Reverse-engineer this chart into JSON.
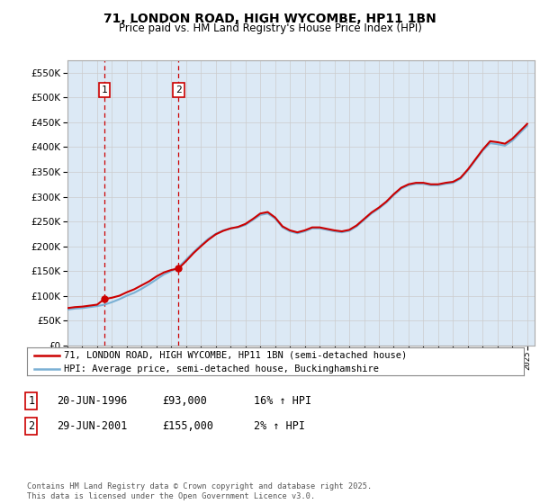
{
  "title": "71, LONDON ROAD, HIGH WYCOMBE, HP11 1BN",
  "subtitle": "Price paid vs. HM Land Registry's House Price Index (HPI)",
  "legend_line1": "71, LONDON ROAD, HIGH WYCOMBE, HP11 1BN (semi-detached house)",
  "legend_line2": "HPI: Average price, semi-detached house, Buckinghamshire",
  "annotation1_label": "1",
  "annotation1_date": "20-JUN-1996",
  "annotation1_price": "£93,000",
  "annotation1_hpi": "16% ↑ HPI",
  "annotation1_year": 1996.47,
  "annotation1_value": 93000,
  "annotation2_label": "2",
  "annotation2_date": "29-JUN-2001",
  "annotation2_price": "£155,000",
  "annotation2_hpi": "2% ↑ HPI",
  "annotation2_year": 2001.49,
  "annotation2_value": 155000,
  "footer": "Contains HM Land Registry data © Crown copyright and database right 2025.\nThis data is licensed under the Open Government Licence v3.0.",
  "ylim": [
    0,
    575000
  ],
  "yticks": [
    0,
    50000,
    100000,
    150000,
    200000,
    250000,
    300000,
    350000,
    400000,
    450000,
    500000,
    550000
  ],
  "xlim_start": 1994,
  "xlim_end": 2025.5,
  "line_color_red": "#cc0000",
  "line_color_blue": "#7ab0d4",
  "vline_color": "#cc0000",
  "grid_color": "#cccccc",
  "background_color": "#ffffff",
  "plot_bg_color": "#dce9f5",
  "hpi_years": [
    1994.0,
    1994.5,
    1995.0,
    1995.5,
    1996.0,
    1996.5,
    1997.0,
    1997.5,
    1998.0,
    1998.5,
    1999.0,
    1999.5,
    2000.0,
    2000.5,
    2001.0,
    2001.5,
    2002.0,
    2002.5,
    2003.0,
    2003.5,
    2004.0,
    2004.5,
    2005.0,
    2005.5,
    2006.0,
    2006.5,
    2007.0,
    2007.5,
    2008.0,
    2008.5,
    2009.0,
    2009.5,
    2010.0,
    2010.5,
    2011.0,
    2011.5,
    2012.0,
    2012.5,
    2013.0,
    2013.5,
    2014.0,
    2014.5,
    2015.0,
    2015.5,
    2016.0,
    2016.5,
    2017.0,
    2017.5,
    2018.0,
    2018.5,
    2019.0,
    2019.5,
    2020.0,
    2020.5,
    2021.0,
    2021.5,
    2022.0,
    2022.5,
    2023.0,
    2023.5,
    2024.0,
    2024.5,
    2025.0
  ],
  "hpi_values": [
    72000,
    74000,
    75000,
    77000,
    79000,
    82000,
    87000,
    93000,
    100000,
    106000,
    114000,
    123000,
    133000,
    143000,
    150000,
    158000,
    173000,
    188000,
    202000,
    215000,
    225000,
    232000,
    236000,
    238000,
    243000,
    253000,
    263000,
    266000,
    256000,
    238000,
    230000,
    226000,
    230000,
    236000,
    236000,
    233000,
    230000,
    228000,
    231000,
    240000,
    253000,
    266000,
    276000,
    288000,
    303000,
    316000,
    323000,
    326000,
    326000,
    323000,
    323000,
    326000,
    328000,
    336000,
    353000,
    373000,
    393000,
    408000,
    406000,
    403000,
    413000,
    428000,
    443000
  ],
  "red_years": [
    1994.0,
    1994.5,
    1995.0,
    1995.5,
    1996.0,
    1996.47,
    1997.0,
    1997.5,
    1998.0,
    1998.5,
    1999.0,
    1999.5,
    2000.0,
    2000.5,
    2001.0,
    2001.49,
    2002.0,
    2002.5,
    2003.0,
    2003.5,
    2004.0,
    2004.5,
    2005.0,
    2005.5,
    2006.0,
    2006.5,
    2007.0,
    2007.5,
    2008.0,
    2008.5,
    2009.0,
    2009.5,
    2010.0,
    2010.5,
    2011.0,
    2011.5,
    2012.0,
    2012.5,
    2013.0,
    2013.5,
    2014.0,
    2014.5,
    2015.0,
    2015.5,
    2016.0,
    2016.5,
    2017.0,
    2017.5,
    2018.0,
    2018.5,
    2019.0,
    2019.5,
    2020.0,
    2020.5,
    2021.0,
    2021.5,
    2022.0,
    2022.5,
    2023.0,
    2023.5,
    2024.0,
    2024.5,
    2025.0
  ],
  "red_values": [
    75000,
    77000,
    78000,
    80000,
    82000,
    93000,
    96000,
    100000,
    107000,
    113000,
    121000,
    129000,
    139000,
    147000,
    152000,
    155000,
    170000,
    186000,
    200000,
    213000,
    224000,
    231000,
    236000,
    239000,
    245000,
    255000,
    266000,
    269000,
    258000,
    240000,
    232000,
    228000,
    232000,
    238000,
    238000,
    235000,
    232000,
    230000,
    233000,
    242000,
    255000,
    268000,
    278000,
    290000,
    305000,
    318000,
    325000,
    328000,
    328000,
    325000,
    325000,
    328000,
    330000,
    338000,
    355000,
    375000,
    395000,
    412000,
    410000,
    407000,
    417000,
    432000,
    447000
  ]
}
